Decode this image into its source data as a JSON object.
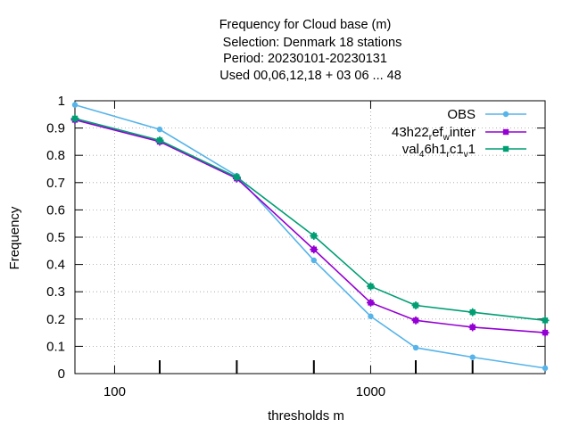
{
  "chart_data": {
    "type": "line",
    "title_lines": [
      "Frequency  for Cloud base (m)",
      "Selection: Denmark      18 stations",
      "Period: 20230101-20230131",
      "Used  00,06,12,18  + 03 06 ... 48"
    ],
    "xlabel": "thresholds m",
    "ylabel": "Frequency",
    "x_scale": "log",
    "xlim": [
      70,
      4800
    ],
    "ylim": [
      0,
      1
    ],
    "x_tick_labels": [
      {
        "value": 100,
        "label": "100"
      },
      {
        "value": 1000,
        "label": "1000"
      }
    ],
    "x_minor_ticks": [
      150,
      300,
      600,
      1500,
      2500
    ],
    "y_ticks": [
      0,
      0.1,
      0.2,
      0.3,
      0.4,
      0.5,
      0.6,
      0.7,
      0.8,
      0.9,
      1
    ],
    "y_tick_labels": [
      "0",
      "0.1",
      "0.2",
      "0.3",
      "0.4",
      "0.5",
      "0.6",
      "0.7",
      "0.8",
      "0.9",
      "1"
    ],
    "grid": true,
    "legend_position": "top-right",
    "x": [
      70,
      150,
      300,
      600,
      1000,
      1500,
      2500,
      4800
    ],
    "series": [
      {
        "name": "OBS",
        "legend": [
          "OBS"
        ],
        "color": "#56b4e9",
        "values": [
          0.985,
          0.895,
          0.725,
          0.415,
          0.21,
          0.095,
          0.06,
          0.02
        ]
      },
      {
        "name": "43h22_ref_winter",
        "legend": [
          "43h22",
          "r",
          "ef",
          "w",
          "inter"
        ],
        "color": "#9400d3",
        "values": [
          0.93,
          0.85,
          0.715,
          0.455,
          0.26,
          0.195,
          0.17,
          0.15
        ]
      },
      {
        "name": "val_46h1_rc1_v1",
        "legend": [
          "val",
          "4",
          "6h1",
          "r",
          "c1",
          "v",
          "1"
        ],
        "color": "#009e73",
        "values": [
          0.935,
          0.855,
          0.72,
          0.505,
          0.32,
          0.25,
          0.225,
          0.195
        ]
      }
    ]
  }
}
